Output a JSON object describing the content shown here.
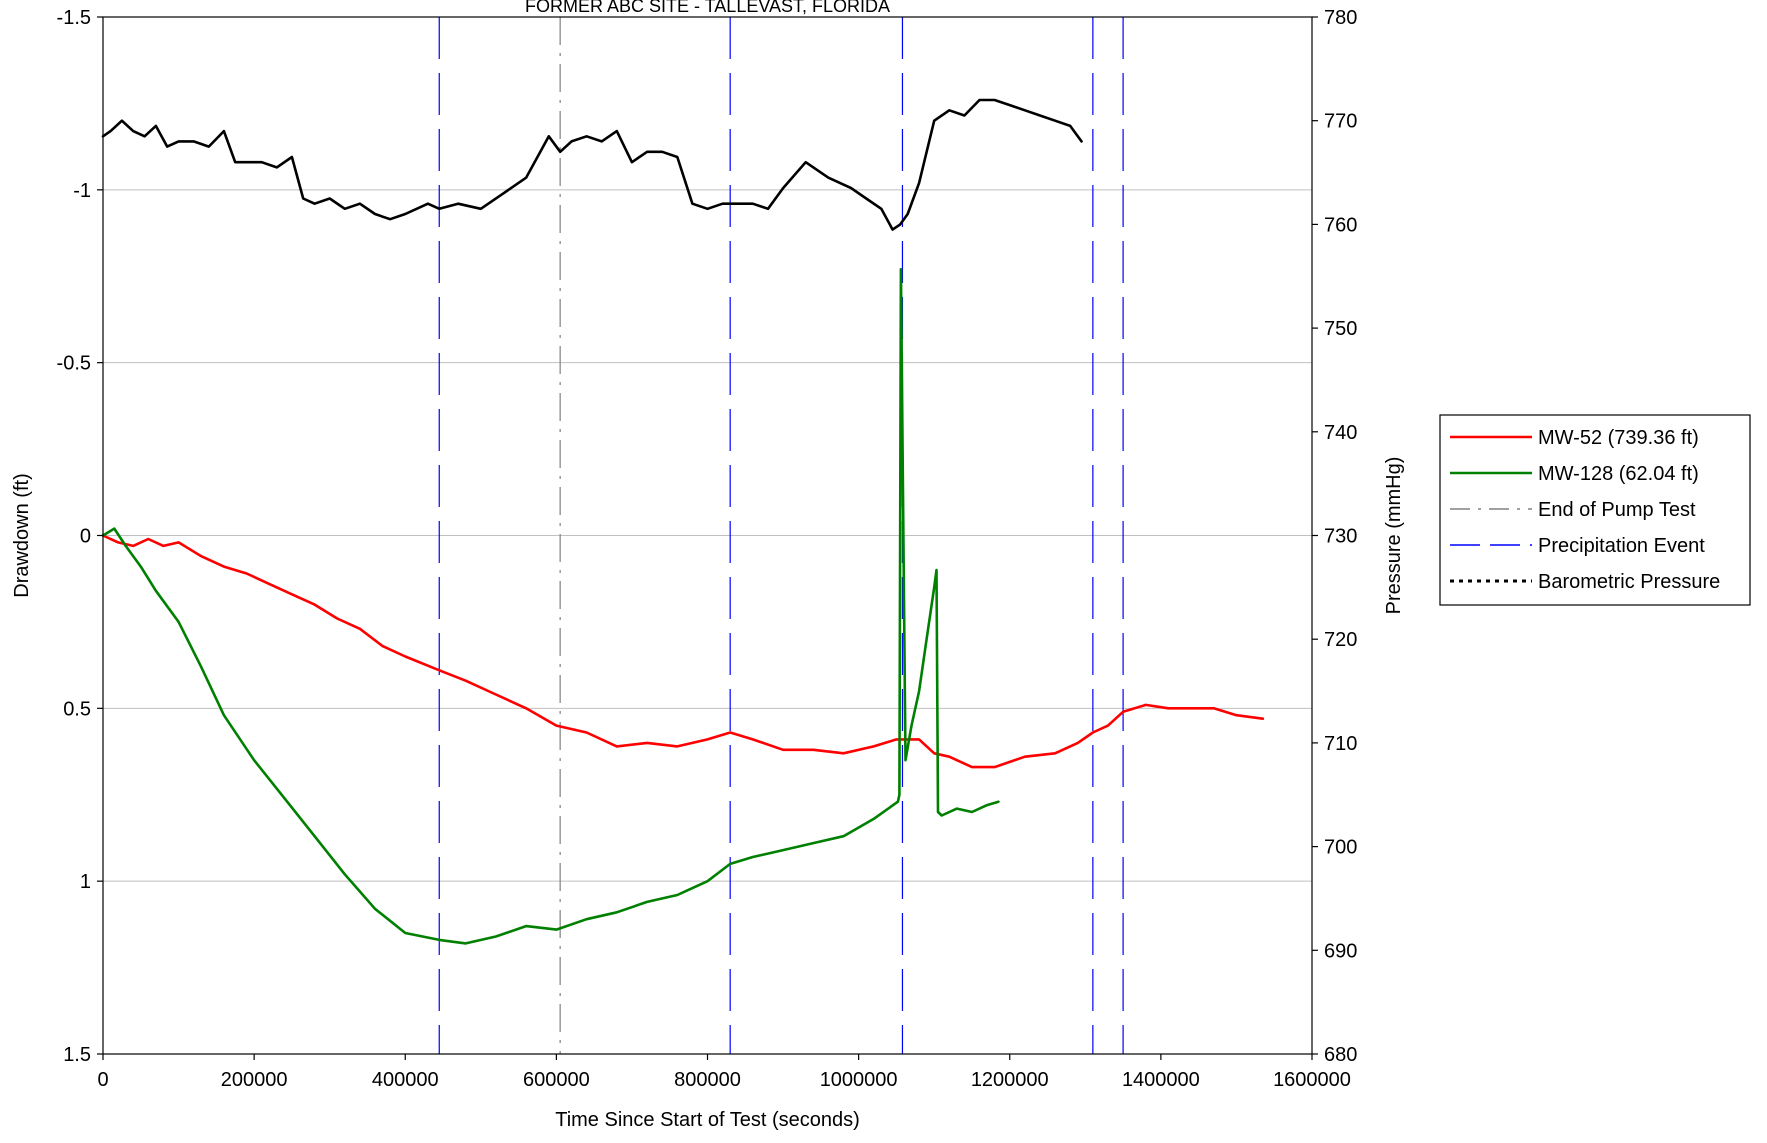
{
  "chart_data": {
    "type": "line",
    "title": "FORMER ABC SITE - TALLEVAST, FLORIDA",
    "xlabel": "Time Since Start of Test (seconds)",
    "ylabel_left": "Drawdown (ft)",
    "ylabel_right": "Pressure (mmHg)",
    "xlim": [
      0,
      1600000
    ],
    "ylim_left": [
      -1.5,
      1.5
    ],
    "ylim_left_inverted": true,
    "ylim_right": [
      680,
      780
    ],
    "x_ticks": [
      "0",
      "200000",
      "400000",
      "600000",
      "800000",
      "1000000",
      "1200000",
      "1400000",
      "1600000"
    ],
    "y_left_ticks": [
      "-1.5",
      "-1",
      "-0.5",
      "0",
      "0.5",
      "1",
      "1.5"
    ],
    "y_right_ticks": [
      "680",
      "690",
      "700",
      "710",
      "720",
      "730",
      "740",
      "750",
      "760",
      "770",
      "780"
    ],
    "grid": "horizontal",
    "legend_position": "right",
    "series": [
      {
        "name": "MW-52 (739.36 ft)",
        "axis": "left",
        "color": "#ff0000",
        "style": "solid",
        "x": [
          0,
          20000,
          40000,
          60000,
          80000,
          100000,
          130000,
          160000,
          190000,
          220000,
          250000,
          280000,
          310000,
          340000,
          370000,
          400000,
          445000,
          480000,
          520000,
          560000,
          600000,
          640000,
          680000,
          720000,
          760000,
          800000,
          830000,
          860000,
          900000,
          940000,
          980000,
          1020000,
          1050000,
          1080000,
          1100000,
          1120000,
          1150000,
          1180000,
          1220000,
          1260000,
          1290000,
          1310000,
          1330000,
          1350000,
          1380000,
          1410000,
          1440000,
          1470000,
          1500000,
          1535000
        ],
        "y": [
          0.0,
          0.02,
          0.03,
          0.01,
          0.03,
          0.02,
          0.06,
          0.09,
          0.11,
          0.14,
          0.17,
          0.2,
          0.24,
          0.27,
          0.32,
          0.35,
          0.39,
          0.42,
          0.46,
          0.5,
          0.55,
          0.57,
          0.61,
          0.6,
          0.61,
          0.59,
          0.57,
          0.59,
          0.62,
          0.62,
          0.63,
          0.61,
          0.59,
          0.59,
          0.63,
          0.64,
          0.67,
          0.67,
          0.64,
          0.63,
          0.6,
          0.57,
          0.55,
          0.51,
          0.49,
          0.5,
          0.5,
          0.5,
          0.52,
          0.53
        ]
      },
      {
        "name": "MW-128 (62.04 ft)",
        "axis": "left",
        "color": "#008000",
        "style": "solid",
        "x": [
          0,
          15000,
          30000,
          50000,
          70000,
          100000,
          130000,
          160000,
          200000,
          240000,
          280000,
          320000,
          360000,
          400000,
          445000,
          480000,
          520000,
          560000,
          600000,
          640000,
          680000,
          720000,
          760000,
          800000,
          830000,
          860000,
          900000,
          940000,
          980000,
          1020000,
          1052000,
          1054000,
          1056000,
          1062000,
          1070000,
          1080000,
          1090000,
          1100000,
          1103000,
          1105000,
          1110000,
          1130000,
          1150000,
          1170000,
          1185000
        ],
        "y": [
          0.0,
          -0.02,
          0.03,
          0.09,
          0.16,
          0.25,
          0.38,
          0.52,
          0.65,
          0.76,
          0.87,
          0.98,
          1.08,
          1.15,
          1.17,
          1.18,
          1.16,
          1.13,
          1.14,
          1.11,
          1.09,
          1.06,
          1.04,
          1.0,
          0.95,
          0.93,
          0.91,
          0.89,
          0.87,
          0.82,
          0.77,
          0.75,
          -0.77,
          0.65,
          0.55,
          0.45,
          0.3,
          0.15,
          0.1,
          0.8,
          0.81,
          0.79,
          0.8,
          0.78,
          0.77
        ]
      },
      {
        "name": "End of Pump Test",
        "axis": "left",
        "color": "#808080",
        "style": "dash-dot",
        "x_values": [
          605000
        ]
      },
      {
        "name": "Precipitation Event",
        "axis": "left",
        "color": "#0000ff",
        "style": "long-dash",
        "x_values": [
          445000,
          830000,
          1058000,
          1310000,
          1350000
        ]
      },
      {
        "name": "Barometric Pressure",
        "axis": "right",
        "color": "#000000",
        "style": "dotted",
        "x": [
          0,
          10000,
          25000,
          40000,
          55000,
          70000,
          85000,
          100000,
          120000,
          140000,
          160000,
          175000,
          190000,
          210000,
          230000,
          250000,
          265000,
          280000,
          300000,
          320000,
          340000,
          360000,
          380000,
          400000,
          430000,
          445000,
          470000,
          500000,
          530000,
          560000,
          590000,
          605000,
          620000,
          640000,
          660000,
          680000,
          700000,
          720000,
          740000,
          760000,
          780000,
          800000,
          820000,
          840000,
          860000,
          880000,
          900000,
          930000,
          960000,
          990000,
          1010000,
          1030000,
          1045000,
          1055000,
          1065000,
          1080000,
          1100000,
          1120000,
          1140000,
          1160000,
          1180000,
          1200000,
          1220000,
          1240000,
          1260000,
          1280000,
          1295000
        ],
        "y": [
          768.5,
          769,
          770,
          769,
          768.5,
          769.5,
          767.5,
          768,
          768,
          767.5,
          769,
          766,
          766,
          766,
          765.5,
          766.5,
          762.5,
          762,
          762.5,
          761.5,
          762,
          761,
          760.5,
          761,
          762,
          761.5,
          762,
          761.5,
          763,
          764.5,
          768.5,
          767,
          768,
          768.5,
          768,
          769,
          766,
          767,
          767,
          766.5,
          762,
          761.5,
          762,
          762,
          762,
          761.5,
          763.5,
          766,
          764.5,
          763.5,
          762.5,
          761.5,
          759.5,
          760,
          761,
          764,
          770,
          771,
          770.5,
          772,
          772,
          771.5,
          771,
          770.5,
          770,
          769.5,
          768
        ]
      }
    ]
  }
}
